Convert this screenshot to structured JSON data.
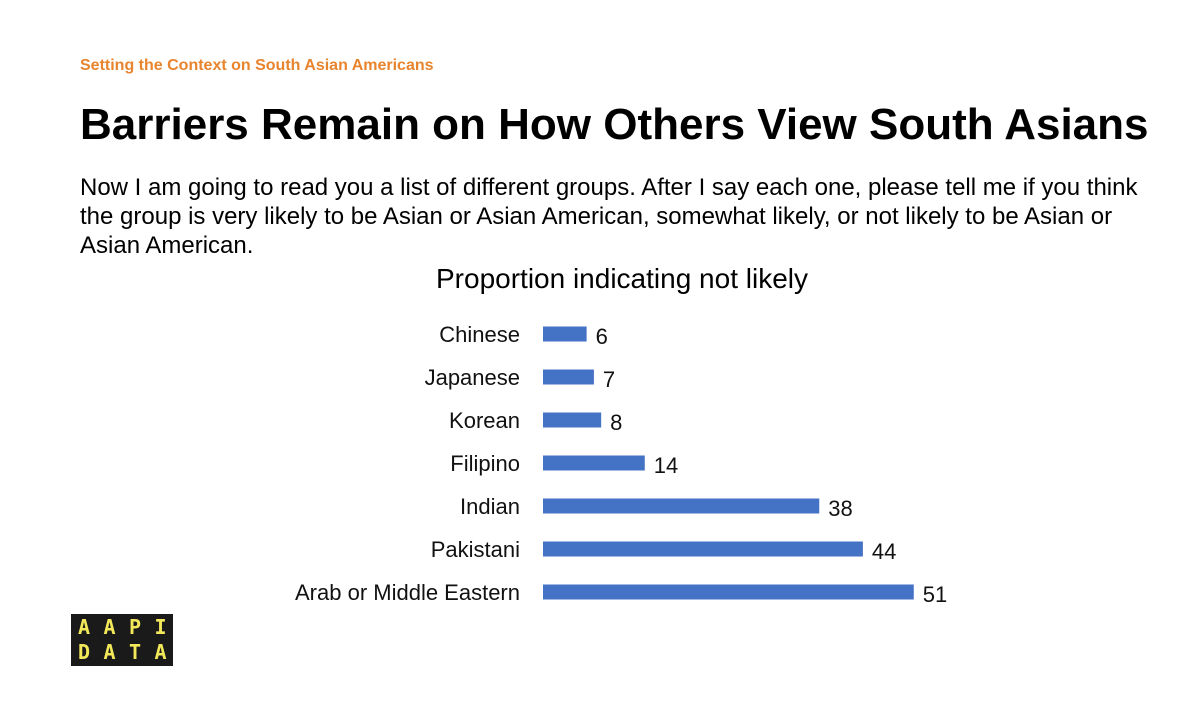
{
  "section_label": "Setting the Context on South Asian Americans",
  "title": "Barriers Remain on How Others View South Asians",
  "question": "Now I am going to read you a list of different groups. After I say each one, please tell me if you think the group is very likely to be Asian or Asian American, somewhat likely, or not likely to be Asian or Asian American.",
  "logo": {
    "row1": [
      "A",
      "A",
      "P",
      "I"
    ],
    "row2": [
      "D",
      "A",
      "T",
      "A"
    ],
    "colors": {
      "background": "#1a1a1a",
      "text": "#f2e85a"
    }
  },
  "chart_data": {
    "type": "bar",
    "orientation": "horizontal",
    "title": "Proportion indicating not likely",
    "categories": [
      "Chinese",
      "Japanese",
      "Korean",
      "Filipino",
      "Indian",
      "Pakistani",
      "Arab or Middle Eastern"
    ],
    "values": [
      6,
      7,
      8,
      14,
      38,
      44,
      51
    ],
    "xlabel": "",
    "ylabel": "",
    "xlim": [
      0,
      51
    ],
    "grid": false,
    "data_labels": true,
    "bar_color": "#4472c4"
  }
}
